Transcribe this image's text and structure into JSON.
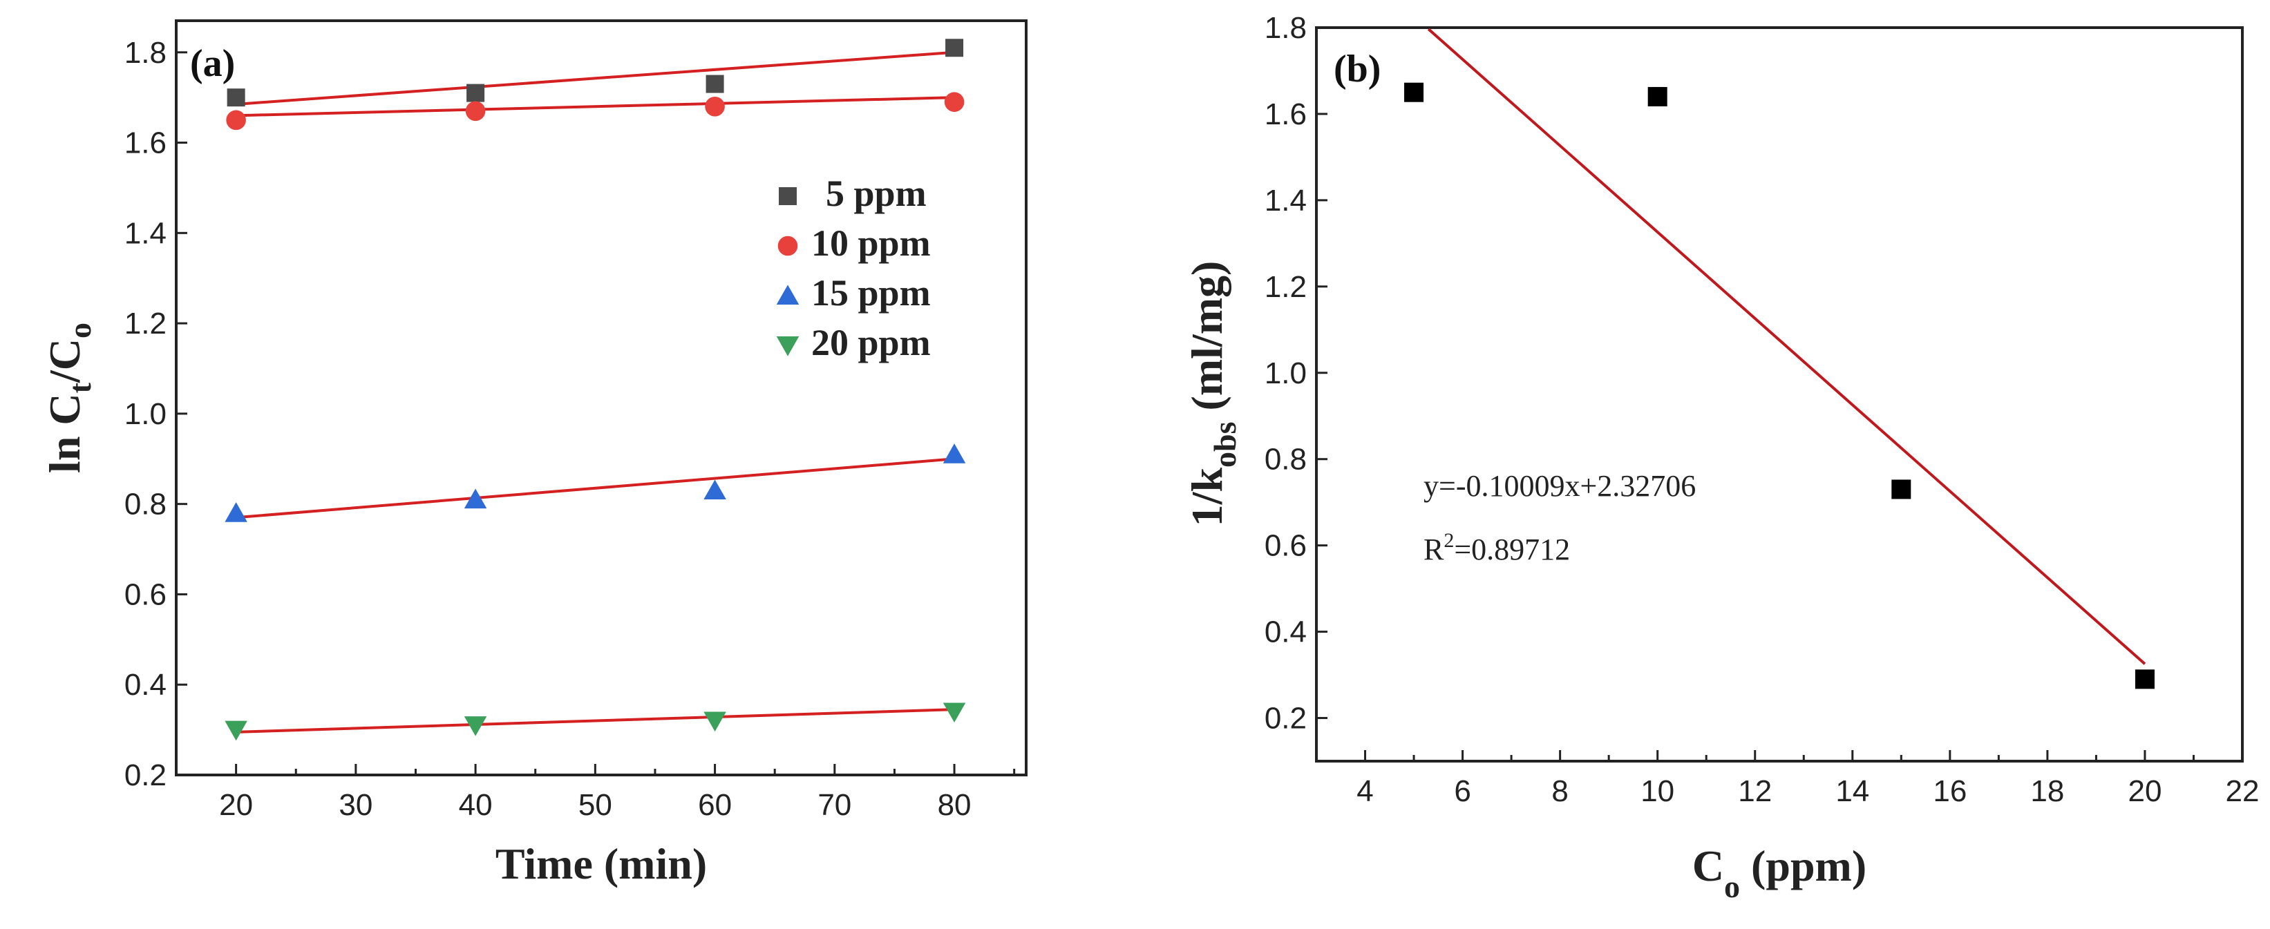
{
  "figure": {
    "panel_a_label": "(a)",
    "panel_b_label": "(b)"
  },
  "chart_data": [
    {
      "type": "scatter",
      "panel": "(a)",
      "xlabel": "Time (min)",
      "ylabel_parts": [
        "ln C",
        "t",
        "/C",
        "o"
      ],
      "xlim": [
        15,
        86
      ],
      "ylim": [
        0.2,
        1.87
      ],
      "xticks": [
        20,
        30,
        40,
        50,
        60,
        70,
        80
      ],
      "yticks": [
        0.2,
        0.4,
        0.6,
        0.8,
        1.0,
        1.2,
        1.4,
        1.6,
        1.8
      ],
      "x": [
        20,
        40,
        60,
        80
      ],
      "legend_position": "right-upper",
      "series": [
        {
          "name": "5 ppm",
          "marker": "square",
          "color": "#4a4a4a",
          "values": [
            1.7,
            1.71,
            1.73,
            1.81
          ],
          "fit": [
            1.685,
            1.8
          ]
        },
        {
          "name": "10 ppm",
          "marker": "circle",
          "color": "#e8413c",
          "values": [
            1.65,
            1.67,
            1.68,
            1.69
          ],
          "fit": [
            1.66,
            1.7
          ]
        },
        {
          "name": "15 ppm",
          "marker": "triangle-up",
          "color": "#2f6bd6",
          "values": [
            0.78,
            0.81,
            0.83,
            0.91
          ],
          "fit": [
            0.77,
            0.9
          ]
        },
        {
          "name": "20 ppm",
          "marker": "triangle-down",
          "color": "#3aa05a",
          "values": [
            0.3,
            0.31,
            0.32,
            0.34
          ],
          "fit": [
            0.295,
            0.345
          ]
        }
      ],
      "fit_color": "#d42020"
    },
    {
      "type": "scatter",
      "panel": "(b)",
      "xlabel_parts": [
        "C",
        "o",
        " (ppm)"
      ],
      "ylabel_parts": [
        "1/k",
        "obs",
        " (ml/mg)"
      ],
      "xlim": [
        3,
        22
      ],
      "ylim": [
        0.1,
        1.8
      ],
      "xticks": [
        4,
        6,
        8,
        10,
        12,
        14,
        16,
        18,
        20,
        22
      ],
      "yticks": [
        0.2,
        0.4,
        0.6,
        0.8,
        1.0,
        1.2,
        1.4,
        1.6,
        1.8
      ],
      "series": [
        {
          "name": "1/kobs",
          "marker": "square",
          "color": "#000000",
          "x": [
            5,
            10,
            15,
            20
          ],
          "values": [
            1.65,
            1.64,
            0.73,
            0.29
          ]
        }
      ],
      "fit": {
        "slope": -0.10009,
        "intercept": 2.32706,
        "x_range": [
          5.3,
          20
        ],
        "color": "#c0181c"
      },
      "equation_text": "y=-0.10009x+2.32706",
      "r2_label": "R",
      "r2_sup": "2",
      "r2_value": "=0.89712"
    }
  ]
}
